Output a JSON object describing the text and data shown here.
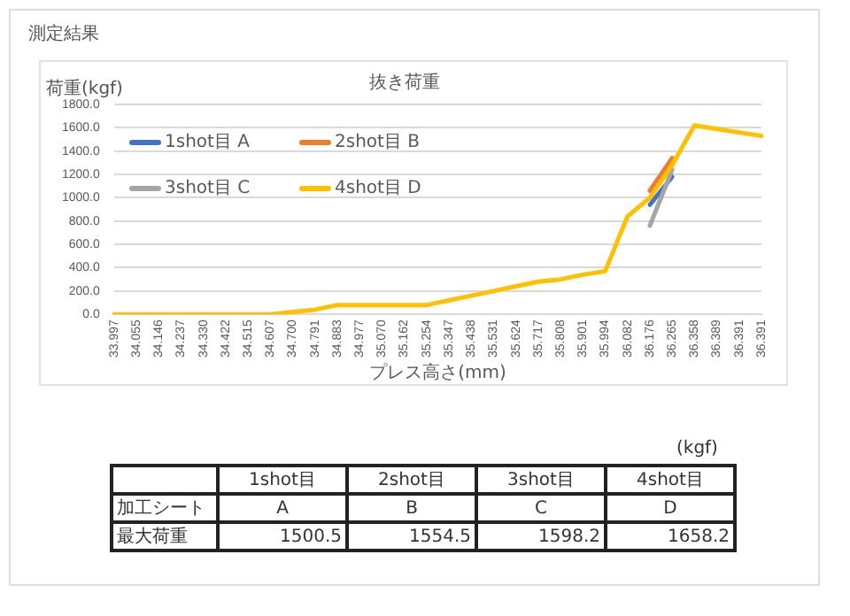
{
  "chart_data": {
    "type": "line",
    "title": "抜き荷重",
    "ylabel": "荷重(kgf)",
    "xlabel": "プレス高さ(mm)",
    "categories": [
      "33.997",
      "34.055",
      "34.146",
      "34.237",
      "34.330",
      "34.422",
      "34.515",
      "34.607",
      "34.700",
      "34.791",
      "34.883",
      "34.977",
      "35.070",
      "35.162",
      "35.254",
      "35.347",
      "35.438",
      "35.531",
      "35.624",
      "35.717",
      "35.808",
      "35.901",
      "35.994",
      "36.082",
      "36.176",
      "36.265",
      "36.358",
      "36.389",
      "36.391",
      "36.391"
    ],
    "series": [
      {
        "name": "1shot目 A",
        "color": "#4472c4",
        "values": [
          null,
          null,
          null,
          null,
          null,
          null,
          null,
          null,
          null,
          null,
          null,
          null,
          null,
          null,
          null,
          null,
          null,
          null,
          null,
          null,
          null,
          null,
          null,
          null,
          940,
          1180,
          null,
          null,
          null,
          null
        ]
      },
      {
        "name": "2shot目 B",
        "color": "#ed7d31",
        "values": [
          null,
          null,
          null,
          null,
          null,
          null,
          null,
          null,
          null,
          null,
          null,
          null,
          null,
          null,
          null,
          null,
          null,
          null,
          null,
          null,
          null,
          null,
          null,
          null,
          1060,
          1340,
          null,
          null,
          null,
          null
        ]
      },
      {
        "name": "3shot目 C",
        "color": "#a5a5a5",
        "values": [
          null,
          null,
          null,
          null,
          null,
          null,
          null,
          null,
          null,
          null,
          null,
          null,
          null,
          null,
          null,
          null,
          null,
          null,
          null,
          null,
          null,
          null,
          null,
          null,
          760,
          1240,
          null,
          null,
          null,
          null
        ]
      },
      {
        "name": "4shot目 D",
        "color": "#ffc000",
        "values": [
          0,
          0,
          0,
          0,
          0,
          0,
          0,
          0,
          20,
          40,
          80,
          80,
          80,
          80,
          80,
          120,
          160,
          200,
          240,
          280,
          300,
          340,
          370,
          840,
          1000,
          1280,
          1620,
          1590,
          1560,
          1530
        ]
      }
    ],
    "ylim": [
      0,
      1800
    ],
    "yticks": [
      {
        "value": 0,
        "label": "0.0"
      },
      {
        "value": 200,
        "label": "200.0"
      },
      {
        "value": 400,
        "label": "400.0"
      },
      {
        "value": 600,
        "label": "600.0"
      },
      {
        "value": 800,
        "label": "800.0"
      },
      {
        "value": 1000,
        "label": "1000.0"
      },
      {
        "value": 1200,
        "label": "1200.0"
      },
      {
        "value": 1400,
        "label": "1400.0"
      },
      {
        "value": 1600,
        "label": "1600.0"
      },
      {
        "value": 1800,
        "label": "1800.0"
      }
    ],
    "grid": "y",
    "legend": "top left",
    "marker": "none",
    "line_style": "solid",
    "annotations": [
      "測定結果",
      "(kgf)",
      "1shot目",
      "2shot目",
      "3shot目",
      "4shot目",
      "加工シート",
      "A",
      "B",
      "C",
      "D",
      "最大荷重",
      "1500.5",
      "1554.5",
      "1598.2",
      "1658.2"
    ]
  }
}
